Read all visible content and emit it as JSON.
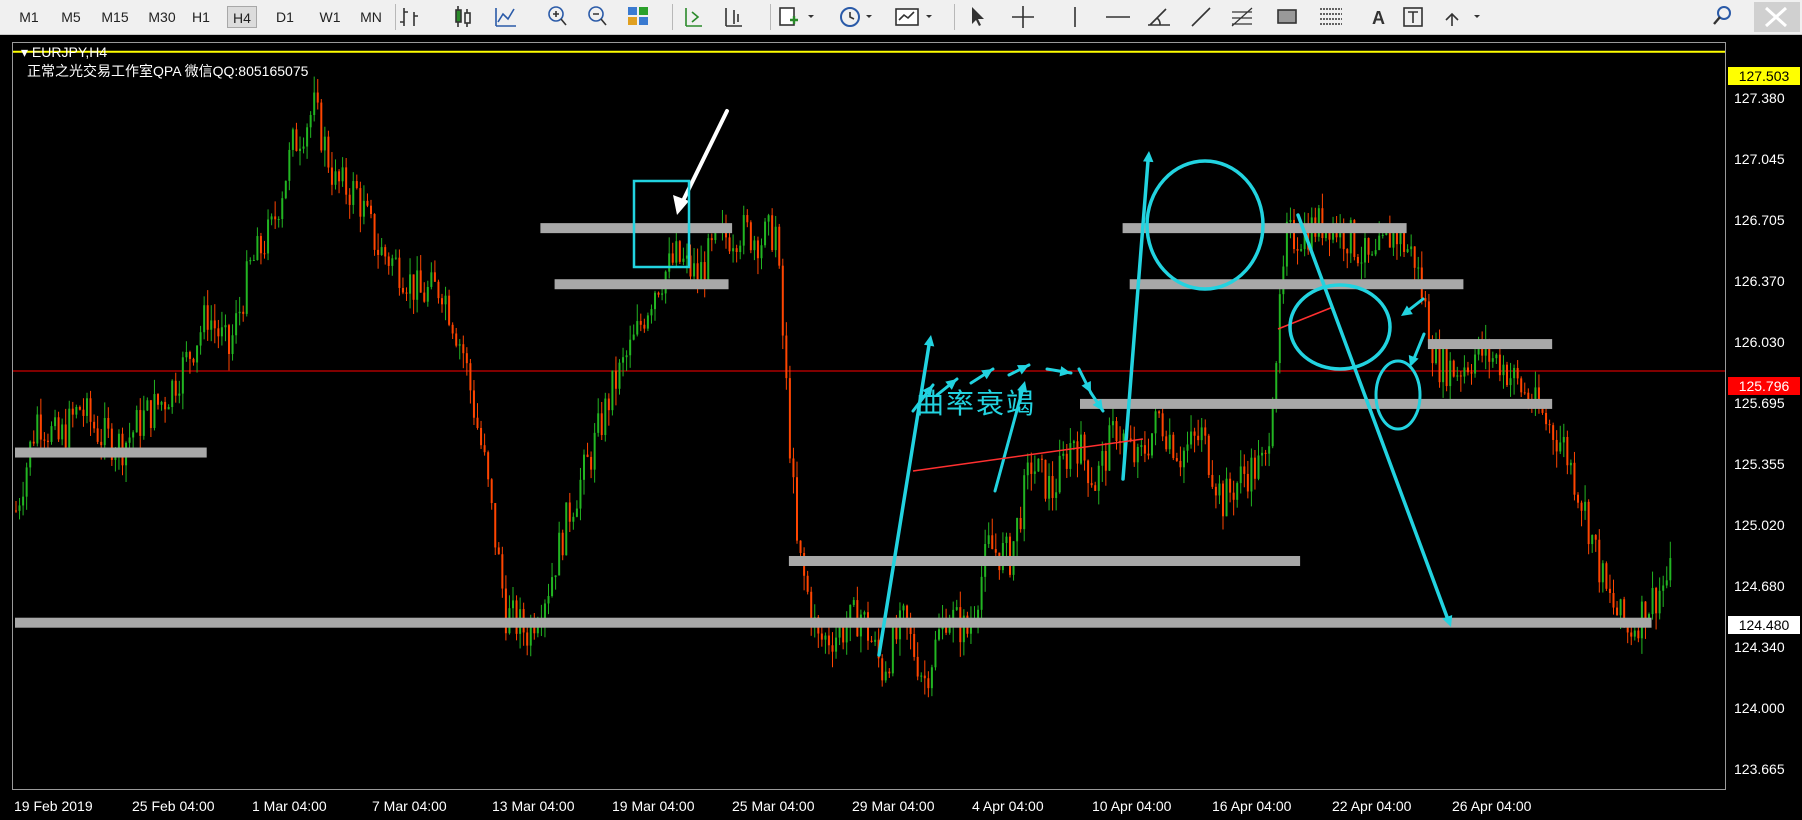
{
  "toolbar": {
    "timeframes": [
      "M1",
      "M5",
      "M15",
      "M30",
      "H1",
      "H4",
      "D1",
      "W1",
      "MN"
    ],
    "active_timeframe": "H4",
    "icons": [
      "bar-chart-icon",
      "candlestick-icon",
      "line-chart-icon",
      "zoom-in-icon",
      "zoom-out-icon",
      "tile-windows-icon",
      "auto-scroll-icon",
      "chart-shift-icon",
      "new-order-icon",
      "period-icon",
      "templates-icon",
      "cursor-icon",
      "crosshair-icon",
      "vertical-line-icon",
      "horizontal-line-icon",
      "trendline-angle-icon",
      "trendline-icon",
      "fibonacci-icon",
      "rectangle-icon",
      "fibo-fan-icon",
      "text-icon",
      "text-label-icon",
      "arrows-icon",
      "search-icon",
      "close-icon"
    ],
    "text_tool_label": "A"
  },
  "chart": {
    "symbol": "EURJPY,H4",
    "subtitle": "正常之光交易工作室QPA 微信QQ:805165075",
    "annotation": "曲率衰竭",
    "yellow_line_price": "127.503",
    "current_price": "125.796",
    "marked_price": "124.480",
    "colors": {
      "bull": "#22b522",
      "bear": "#ff4500",
      "levels": "#a8a8a8",
      "drawing": "#22d3e0",
      "current": "#ff0000",
      "yellow": "#ffff00"
    }
  },
  "price_axis": {
    "labels": [
      "127.380",
      "127.045",
      "126.705",
      "126.370",
      "126.030",
      "125.695",
      "125.355",
      "125.020",
      "124.680",
      "124.340",
      "124.000",
      "123.665"
    ]
  },
  "time_axis": {
    "labels": [
      "19 Feb 2019",
      "25 Feb 04:00",
      "1 Mar 04:00",
      "7 Mar 04:00",
      "13 Mar 04:00",
      "19 Mar 04:00",
      "25 Mar 04:00",
      "29 Mar 04:00",
      "4 Apr 04:00",
      "10 Apr 04:00",
      "16 Apr 04:00",
      "22 Apr 04:00",
      "26 Apr 04:00"
    ]
  },
  "chart_data": {
    "type": "candlestick",
    "symbol": "EURJPY",
    "timeframe": "H4",
    "ylim": [
      123.55,
      127.55
    ],
    "close_path": [
      [
        0,
        125.05
      ],
      [
        6,
        125.55
      ],
      [
        12,
        125.42
      ],
      [
        18,
        125.6
      ],
      [
        24,
        125.45
      ],
      [
        30,
        125.4
      ],
      [
        36,
        125.55
      ],
      [
        42,
        125.65
      ],
      [
        48,
        125.85
      ],
      [
        54,
        126.1
      ],
      [
        60,
        125.9
      ],
      [
        66,
        126.35
      ],
      [
        72,
        126.55
      ],
      [
        78,
        127.0
      ],
      [
        84,
        127.2
      ],
      [
        90,
        126.8
      ],
      [
        96,
        126.75
      ],
      [
        102,
        126.45
      ],
      [
        108,
        126.35
      ],
      [
        114,
        126.2
      ],
      [
        120,
        126.25
      ],
      [
        126,
        125.9
      ],
      [
        132,
        125.3
      ],
      [
        138,
        124.5
      ],
      [
        144,
        124.4
      ],
      [
        150,
        124.65
      ],
      [
        156,
        125.05
      ],
      [
        162,
        125.35
      ],
      [
        168,
        125.7
      ],
      [
        174,
        125.95
      ],
      [
        180,
        126.25
      ],
      [
        186,
        126.4
      ],
      [
        192,
        126.3
      ],
      [
        198,
        126.5
      ],
      [
        204,
        126.55
      ],
      [
        210,
        126.5
      ],
      [
        214,
        126.55
      ],
      [
        220,
        124.85
      ],
      [
        226,
        124.35
      ],
      [
        232,
        124.4
      ],
      [
        238,
        124.5
      ],
      [
        244,
        124.2
      ],
      [
        250,
        124.45
      ],
      [
        256,
        124.15
      ],
      [
        262,
        124.5
      ],
      [
        268,
        124.4
      ],
      [
        274,
        124.85
      ],
      [
        280,
        124.8
      ],
      [
        286,
        125.3
      ],
      [
        292,
        125.15
      ],
      [
        298,
        125.45
      ],
      [
        304,
        125.2
      ],
      [
        310,
        125.5
      ],
      [
        316,
        125.3
      ],
      [
        322,
        125.55
      ],
      [
        328,
        125.35
      ],
      [
        334,
        125.45
      ],
      [
        340,
        125.1
      ],
      [
        346,
        125.25
      ],
      [
        352,
        125.3
      ],
      [
        358,
        126.5
      ],
      [
        364,
        126.55
      ],
      [
        370,
        126.6
      ],
      [
        376,
        126.5
      ],
      [
        382,
        126.35
      ],
      [
        388,
        126.55
      ],
      [
        394,
        126.4
      ],
      [
        400,
        125.85
      ],
      [
        406,
        125.8
      ],
      [
        412,
        125.9
      ],
      [
        418,
        125.85
      ],
      [
        424,
        125.7
      ],
      [
        430,
        125.55
      ],
      [
        436,
        125.4
      ],
      [
        442,
        125.05
      ],
      [
        448,
        124.6
      ],
      [
        454,
        124.4
      ],
      [
        460,
        124.55
      ],
      [
        466,
        124.7
      ]
    ],
    "levels": [
      {
        "price": 125.36,
        "from": 0,
        "to": 54
      },
      {
        "price": 126.56,
        "from": 148,
        "to": 202
      },
      {
        "price": 126.26,
        "from": 152,
        "to": 201
      },
      {
        "price": 126.56,
        "from": 312,
        "to": 392
      },
      {
        "price": 126.26,
        "from": 314,
        "to": 408
      },
      {
        "price": 125.94,
        "from": 398,
        "to": 433
      },
      {
        "price": 125.62,
        "from": 300,
        "to": 433
      },
      {
        "price": 124.78,
        "from": 218,
        "to": 362
      },
      {
        "price": 124.45,
        "from": 0,
        "to": 461
      }
    ],
    "current_price": 125.796,
    "marked_price": 124.48,
    "top_line_price": 127.503
  }
}
